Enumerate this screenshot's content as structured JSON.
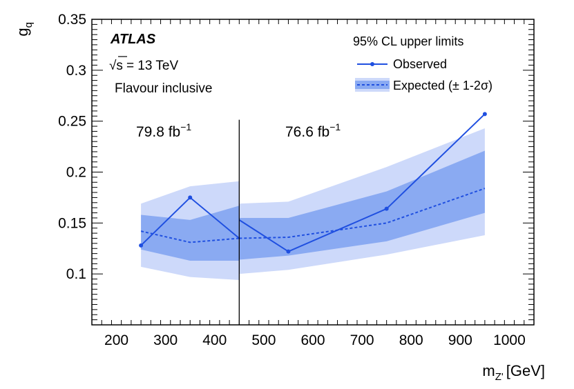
{
  "chart_data": {
    "type": "line",
    "experiment": "ATLAS",
    "energy_label": "= 13 TeV",
    "energy_prefix": "√s",
    "selection_label": "Flavour inclusive",
    "legend_title": "95% CL upper limits",
    "xlabel": "[GeV]",
    "xlabel_symbol": "m",
    "xlabel_sub": "Z'",
    "ylabel": "g",
    "ylabel_sub": "q",
    "xlim": [
      150,
      1050
    ],
    "ylim": [
      0.05,
      0.35
    ],
    "x_ticks": [
      200,
      300,
      400,
      500,
      600,
      700,
      800,
      900,
      1000
    ],
    "y_ticks": [
      0.1,
      0.15,
      0.2,
      0.25,
      0.3,
      0.35
    ],
    "y_tick_labels": [
      "0.1",
      "0.15",
      "0.2",
      "0.25",
      "0.3",
      "0.35"
    ],
    "divider_x": 450,
    "lumi_left": {
      "value": "79.8 fb",
      "sup": "−1"
    },
    "lumi_right": {
      "value": "76.6 fb",
      "sup": "−1"
    },
    "colors": {
      "observed": "#1f4fe0",
      "band_1sigma": "#8aaaf2",
      "band_2sigma": "#cdd9fa"
    },
    "series": [
      {
        "name": "Observed",
        "segments": [
          {
            "x": [
              250,
              350,
              450
            ],
            "y": [
              0.128,
              0.175,
              0.135
            ]
          },
          {
            "x": [
              450,
              550,
              750,
              950
            ],
            "y": [
              0.153,
              0.122,
              0.164,
              0.257
            ]
          }
        ]
      },
      {
        "name": "Expected (± 1-2σ)",
        "segments": [
          {
            "x": [
              250,
              350,
              450
            ],
            "y": [
              0.142,
              0.131,
              0.135
            ],
            "band1_low": [
              0.124,
              0.113,
              0.113
            ],
            "band1_high": [
              0.158,
              0.153,
              0.167
            ],
            "band2_low": [
              0.107,
              0.097,
              0.094
            ],
            "band2_high": [
              0.169,
              0.186,
              0.191
            ]
          },
          {
            "x": [
              450,
              550,
              750,
              950
            ],
            "y": [
              0.135,
              0.136,
              0.15,
              0.184
            ],
            "band1_low": [
              0.114,
              0.118,
              0.132,
              0.16
            ],
            "band1_high": [
              0.155,
              0.155,
              0.181,
              0.221
            ],
            "band2_low": [
              0.1,
              0.104,
              0.119,
              0.138
            ],
            "band2_high": [
              0.169,
              0.171,
              0.205,
              0.243
            ]
          }
        ]
      }
    ]
  }
}
